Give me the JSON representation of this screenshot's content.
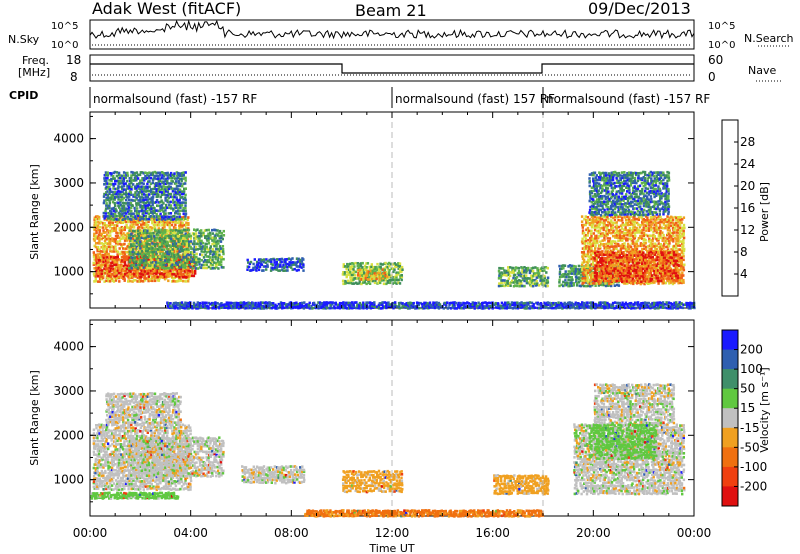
{
  "header": {
    "radar": "Adak West (fitACF)",
    "beam": "Beam 21",
    "date": "09/Dec/2013"
  },
  "top_panels": {
    "nsky_label": "N.Sky",
    "nsky_ticks": [
      "10^5",
      "10^0"
    ],
    "nsearch_label": "N.Search",
    "nsearch_ticks": [
      "10^5",
      "10^0"
    ],
    "freq_label_1": "Freq.",
    "freq_label_2": "[MHz]",
    "freq_ticks": [
      "18",
      "8"
    ],
    "nave_label": "Nave",
    "nave_ticks": [
      "60",
      "0"
    ],
    "cpid_label": "CPID",
    "cpid_segments": [
      {
        "start": 0,
        "end": 12,
        "text": "normalsound (fast) -157 RF"
      },
      {
        "start": 12,
        "end": 18,
        "text": "normalsound (fast) 157 RF"
      },
      {
        "start": 18,
        "end": 24,
        "text": "normalsound (fast) -157 RF"
      }
    ]
  },
  "colors": {
    "power": [
      "#1a1aff",
      "#2f5fb0",
      "#3f8f5a",
      "#5fb34a",
      "#d8e040",
      "#f0a020",
      "#f06018",
      "#e01010"
    ],
    "velocity": [
      "#e01010",
      "#f04010",
      "#f07010",
      "#f0a020",
      "#c0c0c0",
      "#60c840",
      "#3f8f6a",
      "#2f5fb0",
      "#1a1aff"
    ],
    "ground_scatter": "#c0c0c0"
  },
  "chart_data": [
    {
      "type": "heatmap",
      "name": "power",
      "ylabel": "Slant Range [km]",
      "xlabel": "",
      "xlim": [
        0,
        24
      ],
      "ylim": [
        180,
        4600
      ],
      "yticks": [
        "4000",
        "3000",
        "2000",
        "1000"
      ],
      "colorbar_label": "Power [dB]",
      "colorbar_ticks": [
        "28",
        "24",
        "20",
        "16",
        "12",
        "8",
        "4"
      ],
      "colorbar_range": [
        0,
        32
      ],
      "regions": [
        {
          "t0": 0.1,
          "t1": 3.9,
          "r0": 800,
          "r1": 2300,
          "level": 22
        },
        {
          "t0": 0.2,
          "t1": 4.2,
          "r0": 900,
          "r1": 1400,
          "level": 27
        },
        {
          "t0": 1.5,
          "t1": 5.3,
          "r0": 1100,
          "r1": 2000,
          "level": 12
        },
        {
          "t0": 0.5,
          "t1": 3.8,
          "r0": 2200,
          "r1": 3300,
          "level": 8
        },
        {
          "t0": 6.2,
          "t1": 8.5,
          "r0": 1050,
          "r1": 1350,
          "level": 6
        },
        {
          "t0": 10.0,
          "t1": 12.4,
          "r0": 750,
          "r1": 1250,
          "level": 14
        },
        {
          "t0": 10.6,
          "t1": 11.8,
          "r0": 850,
          "r1": 1100,
          "level": 20
        },
        {
          "t0": 16.2,
          "t1": 18.2,
          "r0": 700,
          "r1": 1150,
          "level": 12
        },
        {
          "t0": 18.6,
          "t1": 21.0,
          "r0": 700,
          "r1": 1200,
          "level": 10
        },
        {
          "t0": 19.5,
          "t1": 23.6,
          "r0": 750,
          "r1": 2300,
          "level": 22
        },
        {
          "t0": 20.0,
          "t1": 23.5,
          "r0": 800,
          "r1": 1500,
          "level": 27
        },
        {
          "t0": 19.8,
          "t1": 23.0,
          "r0": 2300,
          "r1": 3300,
          "level": 8
        },
        {
          "t0": 3.0,
          "t1": 24.0,
          "r0": 200,
          "r1": 350,
          "level": 4
        }
      ]
    },
    {
      "type": "heatmap",
      "name": "velocity",
      "ylabel": "Slant Range [km]",
      "xlabel": "Time UT",
      "xlim": [
        0,
        24
      ],
      "ylim": [
        180,
        4600
      ],
      "yticks": [
        "4000",
        "3000",
        "2000",
        "1000"
      ],
      "xticks": [
        "00:00",
        "04:00",
        "08:00",
        "12:00",
        "16:00",
        "20:00",
        "00:00"
      ],
      "colorbar_label": "Velocity [m s⁻¹]",
      "colorbar_ticks": [
        "200",
        "100",
        "50",
        "15",
        "-15",
        "-50",
        "-100",
        "-200"
      ],
      "regions": [
        {
          "t0": 0.1,
          "t1": 4.0,
          "r0": 800,
          "r1": 2300,
          "v": 0
        },
        {
          "t0": 1.5,
          "t1": 5.3,
          "r0": 1100,
          "r1": 2000,
          "v": 0
        },
        {
          "t0": 0.6,
          "t1": 3.6,
          "r0": 2300,
          "r1": 3000,
          "v": 0
        },
        {
          "t0": 6.0,
          "t1": 8.5,
          "r0": 950,
          "r1": 1350,
          "v": 0
        },
        {
          "t0": 10.0,
          "t1": 12.4,
          "r0": 750,
          "r1": 1250,
          "v": -30
        },
        {
          "t0": 16.0,
          "t1": 18.2,
          "r0": 700,
          "r1": 1150,
          "v": -30
        },
        {
          "t0": 19.2,
          "t1": 23.6,
          "r0": 700,
          "r1": 2300,
          "v": 0
        },
        {
          "t0": 19.8,
          "t1": 22.5,
          "r0": 1500,
          "r1": 2300,
          "v": 30
        },
        {
          "t0": 20.0,
          "t1": 23.2,
          "r0": 2300,
          "r1": 3200,
          "v": 0
        },
        {
          "t0": 8.5,
          "t1": 18.0,
          "r0": 200,
          "r1": 350,
          "v": -60
        },
        {
          "t0": 0.0,
          "t1": 3.5,
          "r0": 600,
          "r1": 750,
          "v": 30
        }
      ]
    }
  ]
}
